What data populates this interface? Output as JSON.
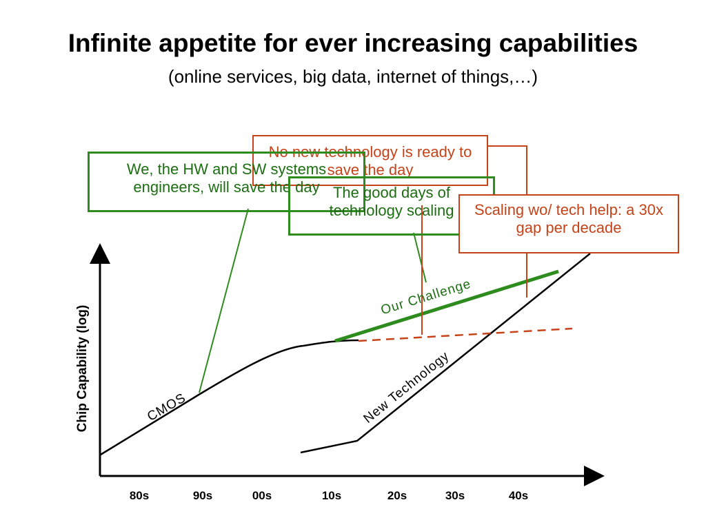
{
  "header": {
    "title": "Infinite appetite for ever increasing capabilities",
    "subtitle": "(online services, big data, internet of things,…)"
  },
  "axes": {
    "y_label": "Chip Capability (log)",
    "x_ticks": [
      "80s",
      "90s",
      "00s",
      "10s",
      "20s",
      "30s",
      "40s"
    ]
  },
  "curves": {
    "cmos": "CMOS",
    "new_technology": "New Technology",
    "our_challenge": "Our Challenge"
  },
  "callouts": {
    "no_new_tech": "No new technology is ready to save the day",
    "engineers": "We, the HW and SW systems engineers, will save the day",
    "good_days": "The good days of technology scaling",
    "scaling_gap": "Scaling wo/ tech help: a 30x gap per decade"
  },
  "colors": {
    "green": "#2e8b1e",
    "red": "#c6431a",
    "black": "#000000"
  }
}
